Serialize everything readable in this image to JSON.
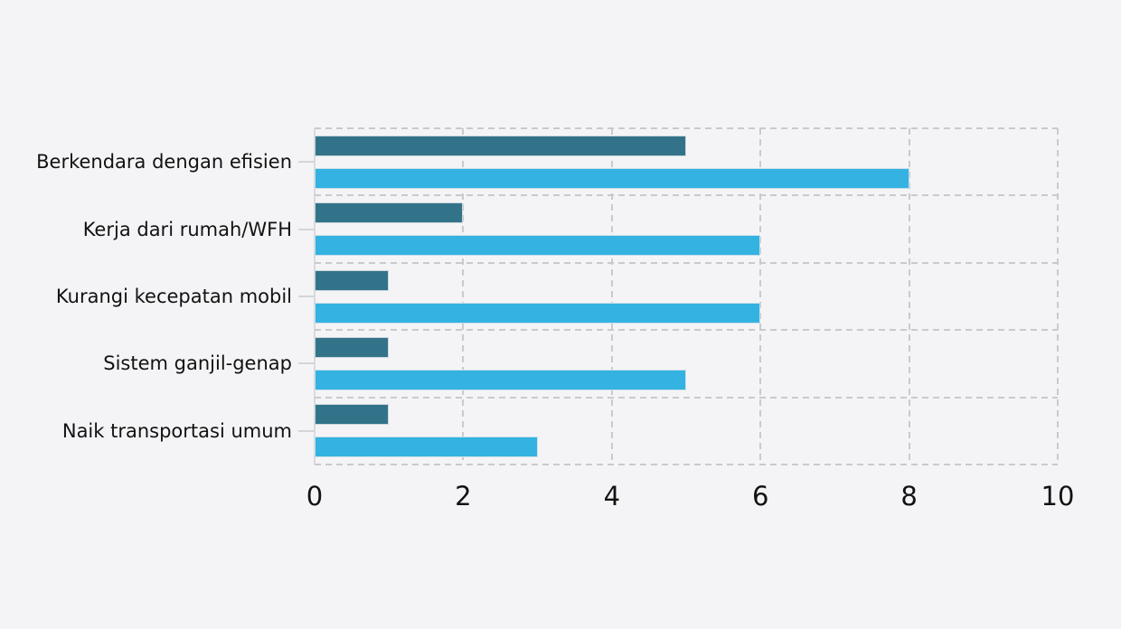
{
  "background_color": "#f4f4f6",
  "text_color": "#121212",
  "gridline_color": "#c9cacc",
  "axis_line_color": "#d9dadc",
  "chart_data": {
    "type": "bar",
    "orientation": "horizontal",
    "title": "",
    "xlabel": "",
    "ylabel": "",
    "categories": [
      "Berkendara dengan efisien",
      "Kerja dari rumah/WFH",
      "Kurangi kecepatan mobil",
      "Sistem ganjil-genap",
      "Naik transportasi umum"
    ],
    "series": [
      {
        "name": "dark-teal-series",
        "color": "#33738a",
        "values": [
          5,
          2,
          1,
          1,
          1
        ]
      },
      {
        "name": "light-blue-series",
        "color": "#34b2e2",
        "values": [
          8,
          6,
          6,
          5,
          3
        ]
      }
    ],
    "xlim": [
      0,
      10
    ],
    "x_ticks": [
      0,
      2,
      4,
      6,
      8,
      10
    ],
    "grid": "dashed vertical and horizontal category separators, dashed plot border on top/right/bottom, solid left axis line",
    "legend": "none",
    "bar_order_within_group": "dark bar on top, light bar below"
  }
}
